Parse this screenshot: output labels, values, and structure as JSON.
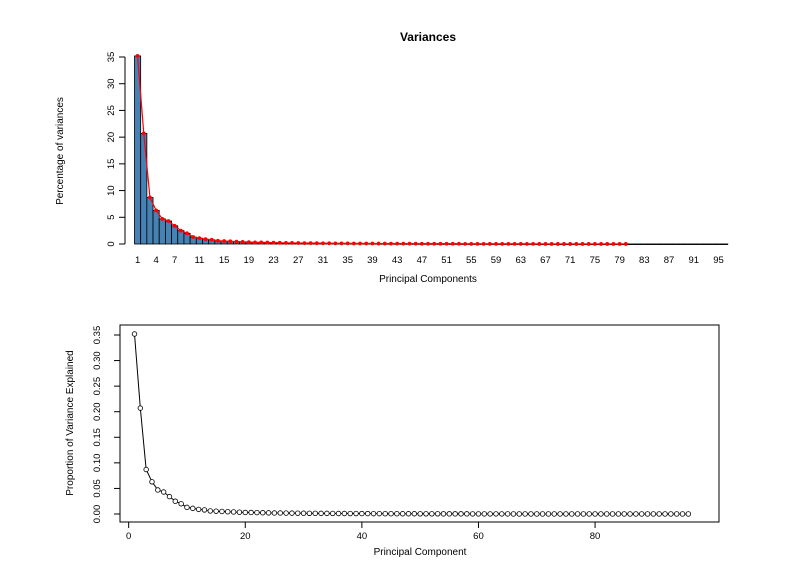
{
  "chart_data": [
    {
      "type": "bar",
      "title": "Variances",
      "xlabel": "Principal Components",
      "ylabel": "Percentage of variances",
      "ylim": [
        0,
        35
      ],
      "yticks": [
        0,
        5,
        10,
        15,
        20,
        25,
        30,
        35
      ],
      "xticks": [
        "1",
        "4",
        "7",
        "11",
        "15",
        "19",
        "23",
        "27",
        "31",
        "35",
        "39",
        "43",
        "47",
        "51",
        "55",
        "59",
        "63",
        "67",
        "71",
        "75",
        "79",
        "83",
        "87",
        "91",
        "95"
      ],
      "bar_color": "#4682b4",
      "line_color": "#ff0000",
      "series": [
        {
          "values": [
            35.2,
            20.7,
            8.7,
            6.3,
            4.7,
            4.3,
            3.4,
            2.5,
            2.0,
            1.3,
            1.1,
            0.9,
            0.8,
            0.6,
            0.55,
            0.5,
            0.45,
            0.4,
            0.35,
            0.3,
            0.3,
            0.28,
            0.25,
            0.22,
            0.2,
            0.2,
            0.18,
            0.17,
            0.16,
            0.15,
            0.14,
            0.13,
            0.12,
            0.12,
            0.11,
            0.1,
            0.1,
            0.09,
            0.09,
            0.08,
            0.08,
            0.07,
            0.07,
            0.06,
            0.06,
            0.06,
            0.05,
            0.05,
            0.05,
            0.04,
            0.04,
            0.04,
            0.04,
            0.03,
            0.03,
            0.03,
            0.03,
            0.03,
            0.02,
            0.02,
            0.02,
            0.02,
            0.02,
            0.02,
            0.02,
            0.01,
            0.01,
            0.01,
            0.01,
            0.01,
            0.01,
            0.01,
            0.01,
            0.01,
            0.01,
            0.01,
            0.01,
            0.01,
            0.01,
            0.01,
            0.01,
            0.01,
            0.01,
            0.01,
            0.01,
            0.01,
            0.01,
            0.01,
            0.01,
            0.01,
            0.01,
            0.01,
            0.01,
            0.01,
            0.01,
            0.01
          ],
          "line_points": 80
        }
      ]
    },
    {
      "type": "line",
      "title": "",
      "xlabel": "Principal Component",
      "ylabel": "Proportion of Variance Explained",
      "xlim": [
        0,
        100
      ],
      "ylim": [
        0,
        0.35
      ],
      "xticks": [
        0,
        20,
        40,
        60,
        80
      ],
      "yticks": [
        "0.00",
        "0.05",
        "0.10",
        "0.15",
        "0.20",
        "0.25",
        "0.30",
        "0.35"
      ],
      "series": [
        {
          "x_start": 1,
          "values": [
            0.352,
            0.207,
            0.087,
            0.063,
            0.047,
            0.043,
            0.034,
            0.025,
            0.02,
            0.013,
            0.011,
            0.009,
            0.008,
            0.006,
            0.0055,
            0.005,
            0.0045,
            0.004,
            0.0035,
            0.003,
            0.003,
            0.0028,
            0.0025,
            0.0022,
            0.002,
            0.002,
            0.0018,
            0.0017,
            0.0016,
            0.0015,
            0.0014,
            0.0013,
            0.0012,
            0.0012,
            0.0011,
            0.001,
            0.001,
            0.0009,
            0.0009,
            0.0008,
            0.0008,
            0.0007,
            0.0007,
            0.0006,
            0.0006,
            0.0006,
            0.0005,
            0.0005,
            0.0005,
            0.0004,
            0.0004,
            0.0004,
            0.0004,
            0.0003,
            0.0003,
            0.0003,
            0.0003,
            0.0003,
            0.0002,
            0.0002,
            0.0002,
            0.0002,
            0.0002,
            0.0002,
            0.0002,
            0.0001,
            0.0001,
            0.0001,
            0.0001,
            0.0001,
            0.0001,
            0.0001,
            0.0001,
            0.0001,
            0.0001,
            0.0001,
            0.0001,
            0.0001,
            0.0001,
            0.0001,
            0.0001,
            0.0001,
            0.0001,
            0.0001,
            0.0001,
            0.0001,
            0.0001,
            0.0001,
            0.0001,
            0.0001,
            0.0001,
            0.0001,
            0.0001,
            0.0001,
            0.0001,
            0.0001
          ]
        }
      ],
      "box": true
    }
  ]
}
